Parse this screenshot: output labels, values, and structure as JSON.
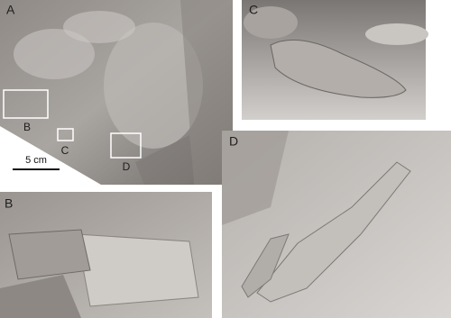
{
  "panels": [
    {
      "label": "A",
      "callouts": [
        "B",
        "C",
        "D"
      ],
      "scale_bar": "5 cm"
    },
    {
      "label": "B"
    },
    {
      "label": "C"
    },
    {
      "label": "D"
    }
  ]
}
